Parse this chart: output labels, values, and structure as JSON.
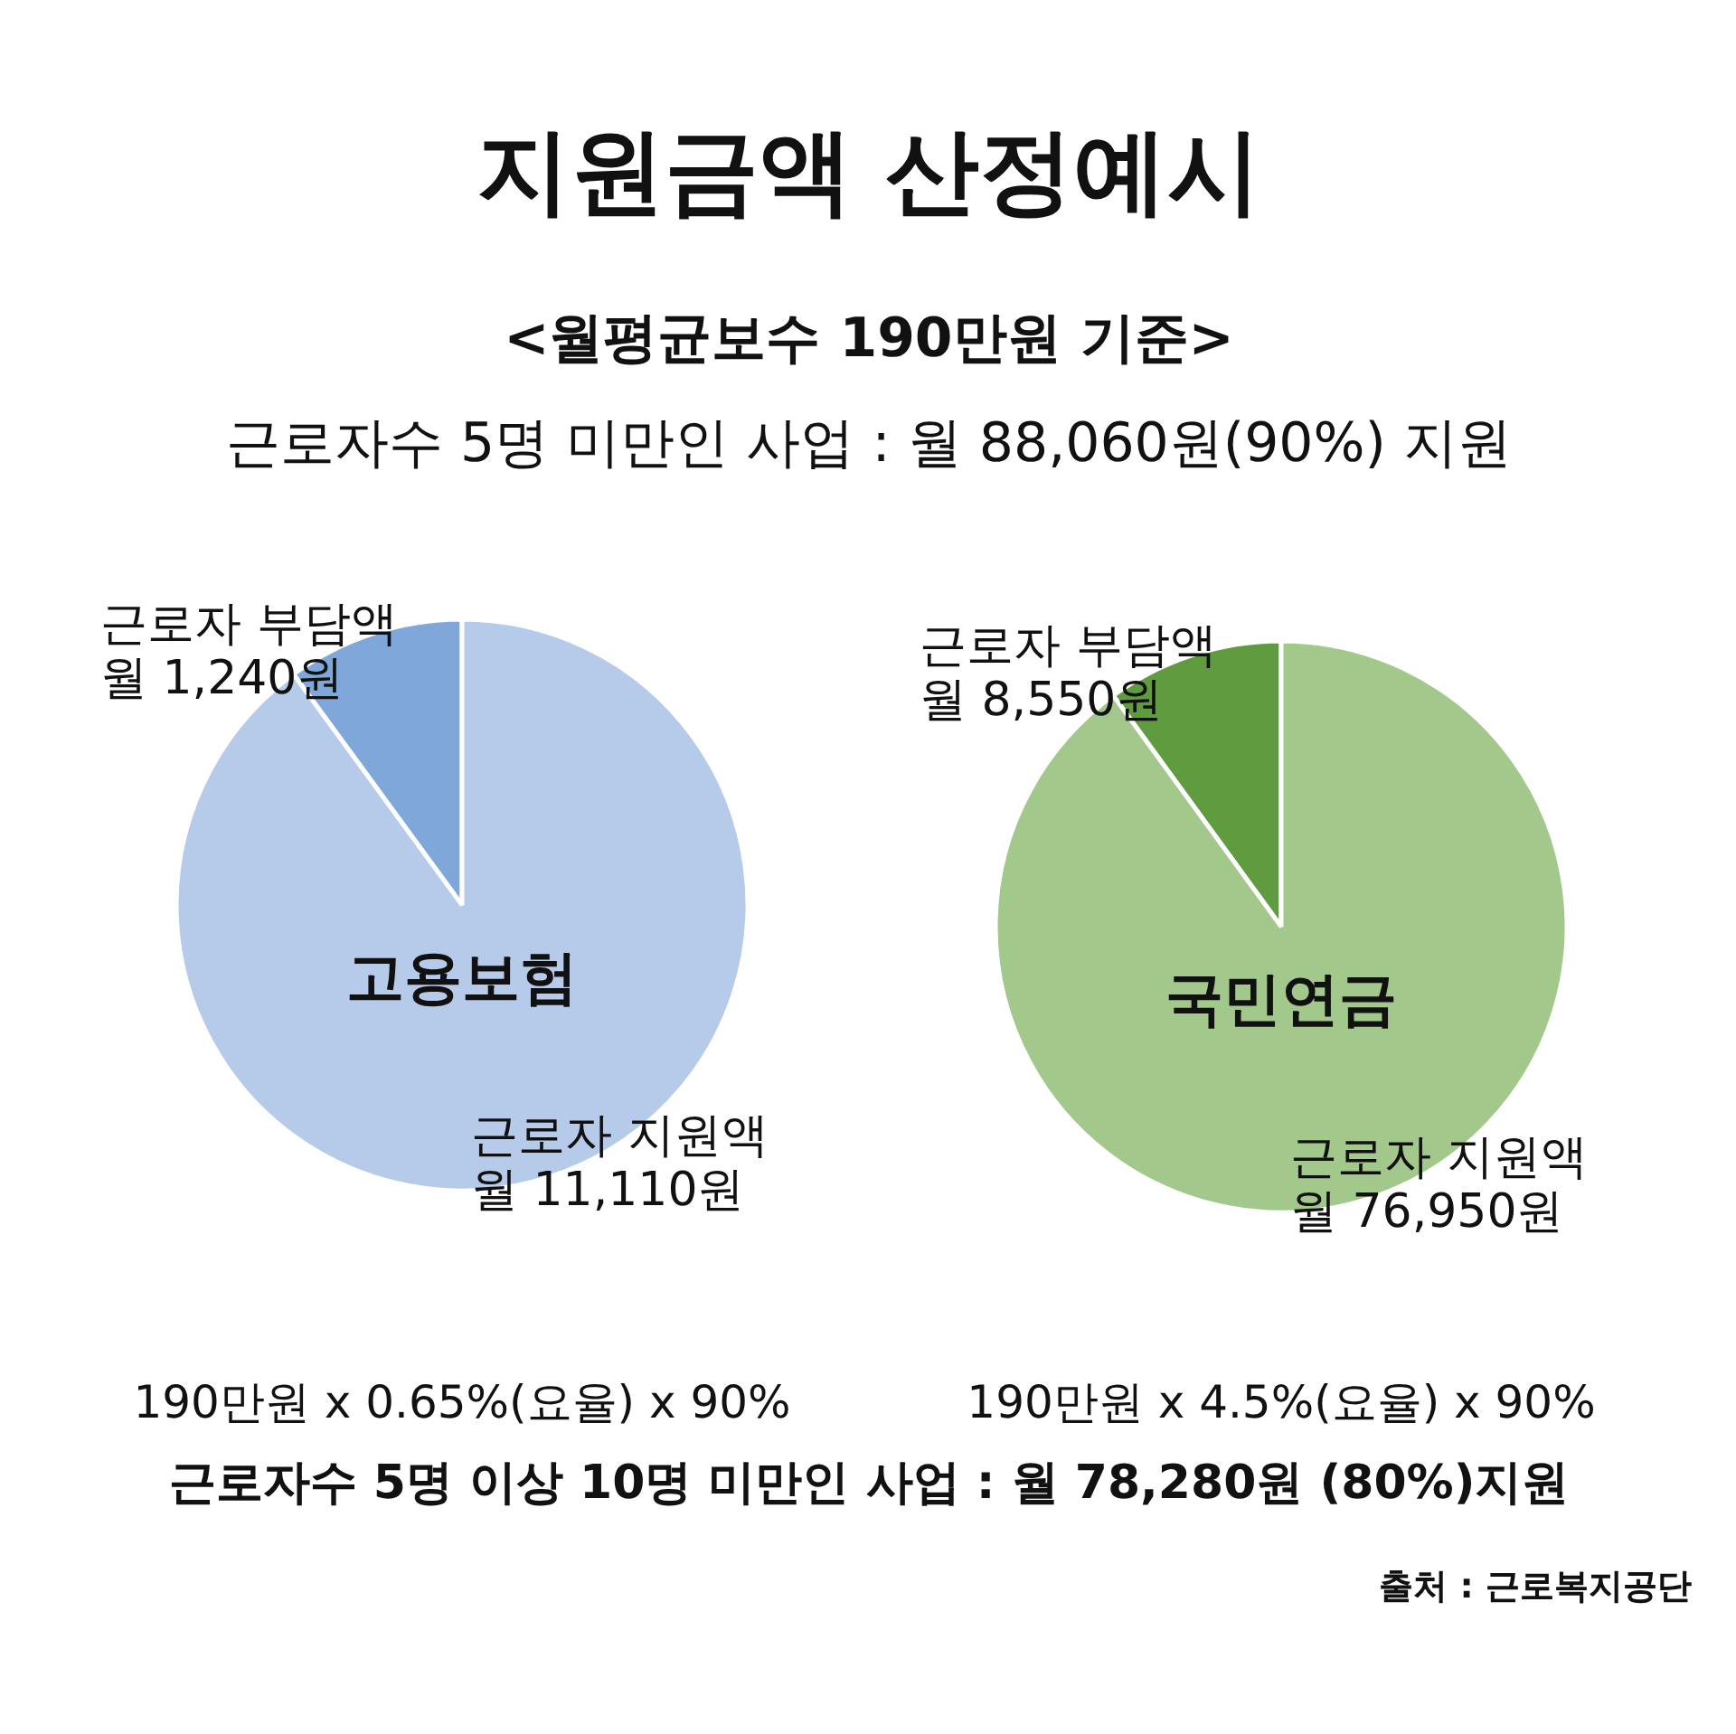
{
  "chart_data": [
    {
      "type": "other",
      "title": "지원금액 산정예시",
      "subtitle": "<월평균보수 190만원 기준>",
      "annotations": [
        "근로자수 5명 미만인 사업 : 월 88,060원(90%) 지원",
        "근로자수 5명 이상 10명 미만인 사업 : 월 78,280원 (80%)지원",
        "출처 : 근로복지공단"
      ]
    },
    {
      "type": "pie",
      "title": "고용보험",
      "categories": [
        "근로자 부담액\n월 1,240원",
        "근로자 지원액\n월 11,110원"
      ],
      "values": [
        1240,
        11110
      ],
      "colors": [
        "#7fa7d9",
        "#b6cbe9"
      ],
      "annotations": [
        "190만원 x 0.65%(요율) x 90%"
      ]
    },
    {
      "type": "pie",
      "title": "국민연금",
      "categories": [
        "근로자 부담액\n월 8,550원",
        "근로자 지원액\n월 76,950원"
      ],
      "values": [
        8550,
        76950
      ],
      "colors": [
        "#5f9b3f",
        "#a3c88c"
      ],
      "annotations": [
        "190만원 x 4.5%(요율) x 90%"
      ]
    }
  ]
}
